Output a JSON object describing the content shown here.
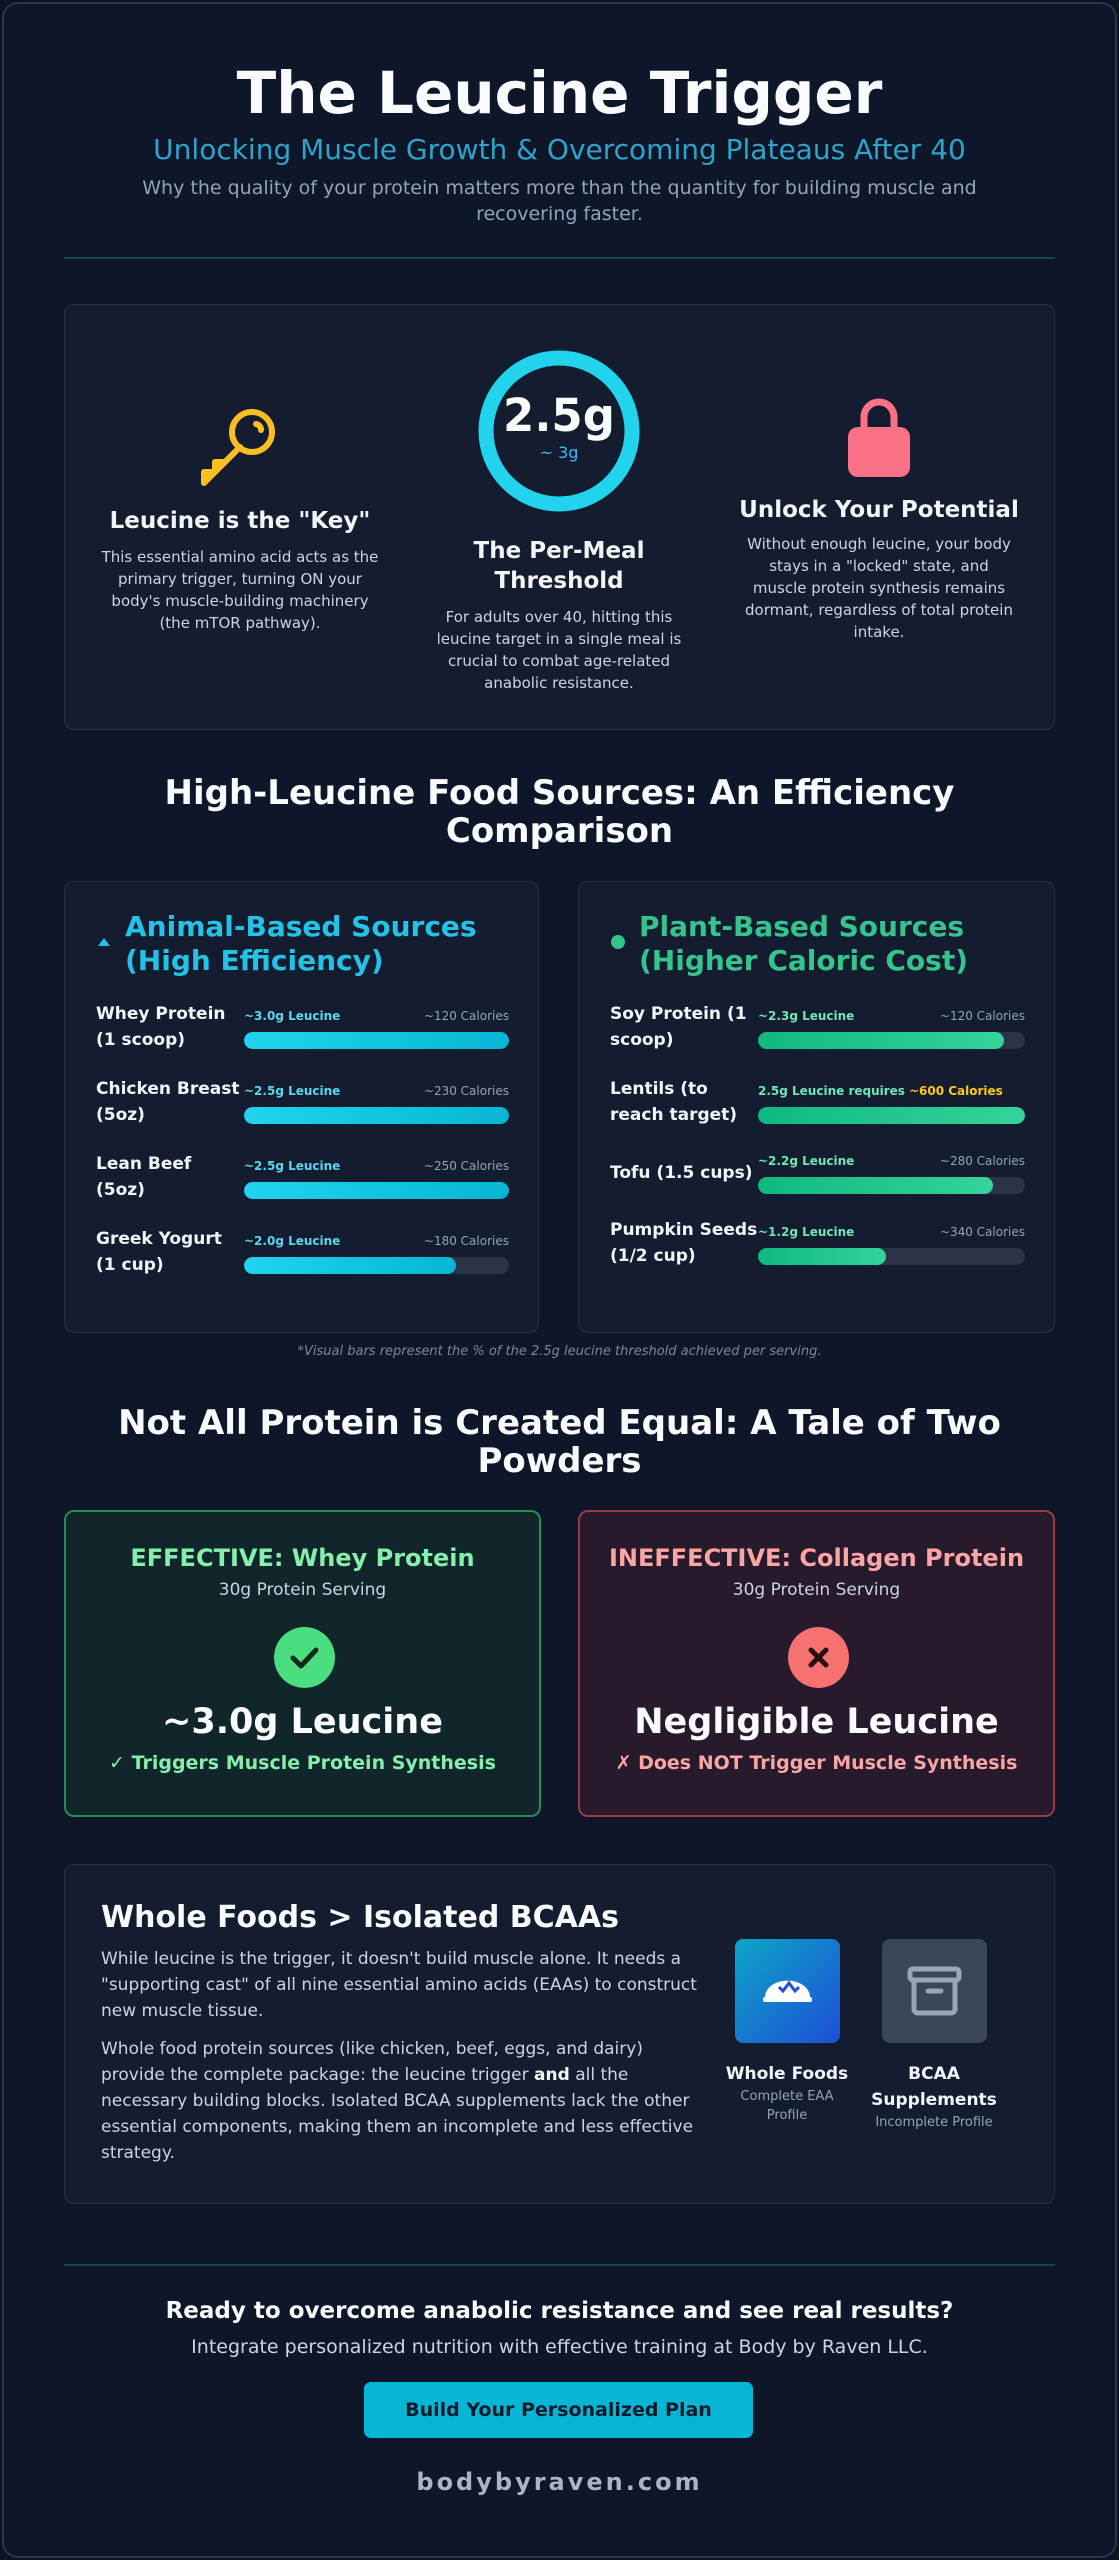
{
  "header": {
    "title": "The Leucine Trigger",
    "subtitle": "Unlocking Muscle Growth & Overcoming Plateaus After 40",
    "description": "Why the quality of your protein matters more than the quantity for building muscle and recovering faster."
  },
  "pillars": [
    {
      "heading": "Leucine is the \"Key\"",
      "text": "This essential amino acid acts as the primary trigger, turning ON your body's muscle-building machinery (the mTOR pathway)."
    },
    {
      "value": "2.5g",
      "sub": "~ 3g",
      "heading": "The Per-Meal Threshold",
      "text": "For adults over 40, hitting this leucine target in a single meal is crucial to combat age-related anabolic resistance."
    },
    {
      "heading": "Unlock Your Potential",
      "text": "Without enough leucine, your body stays in a \"locked\" state, and muscle protein synthesis remains dormant, regardless of total protein intake."
    }
  ],
  "food_section": {
    "title": "High-Leucine Food Sources: An Efficiency Comparison",
    "animal": {
      "title": "Animal-Based Sources (High Efficiency)",
      "items": [
        {
          "name": "Whey Protein (1 scoop)",
          "leucine": "~3.0g Leucine",
          "calories": "~120 Calories",
          "percent": 100
        },
        {
          "name": "Chicken Breast (5oz)",
          "leucine": "~2.5g Leucine",
          "calories": "~230 Calories",
          "percent": 100
        },
        {
          "name": "Lean Beef (5oz)",
          "leucine": "~2.5g Leucine",
          "calories": "~250 Calories",
          "percent": 100
        },
        {
          "name": "Greek Yogurt (1 cup)",
          "leucine": "~2.0g Leucine",
          "calories": "~180 Calories",
          "percent": 80
        }
      ]
    },
    "plant": {
      "title": "Plant-Based Sources (Higher Caloric Cost)",
      "items": [
        {
          "name": "Soy Protein (1 scoop)",
          "leucine": "~2.3g Leucine",
          "calories": "~120 Calories",
          "percent": 92
        },
        {
          "name": "Lentils (to reach target)",
          "leucine": "2.5g Leucine requires",
          "calories": "~600 Calories",
          "calories_color": "#facc15",
          "percent": 100
        },
        {
          "name": "Tofu (1.5 cups)",
          "leucine": "~2.2g Leucine",
          "calories": "~280 Calories",
          "percent": 88
        },
        {
          "name": "Pumpkin Seeds (1/2 cup)",
          "leucine": "~1.2g Leucine",
          "calories": "~340 Calories",
          "percent": 48
        }
      ]
    },
    "footnote": "*Visual bars represent the % of the 2.5g leucine threshold achieved per serving."
  },
  "powders": {
    "title": "Not All Protein is Created Equal: A Tale of Two Powders",
    "cards": [
      {
        "title": "EFFECTIVE: Whey Protein",
        "serving": "30g Protein Serving",
        "amount": "~3.0g Leucine",
        "result": "✓ Triggers Muscle Protein Synthesis"
      },
      {
        "title": "INEFFECTIVE: Collagen Protein",
        "serving": "30g Protein Serving",
        "amount": "Negligible Leucine",
        "result": "✗ Does NOT Trigger Muscle Synthesis"
      }
    ]
  },
  "bcaa": {
    "title": "Whole Foods > Isolated BCAAs",
    "paragraph1": "While leucine is the trigger, it doesn't build muscle alone. It needs a \"supporting cast\" of all nine essential amino acids (EAAs) to construct new muscle tissue.",
    "paragraph2_start": "Whole food protein sources (like chicken, beef, eggs, and dairy) provide the complete package: the leucine trigger ",
    "paragraph2_bold": "and",
    "paragraph2_end": " all the necessary building blocks. Isolated BCAA supplements lack the other essential components, making them an incomplete and less effective strategy.",
    "icons": [
      {
        "label": "Whole Foods",
        "sub": "Complete EAA Profile"
      },
      {
        "label": "BCAA Supplements",
        "sub": "Incomplete Profile"
      }
    ]
  },
  "cta": {
    "heading": "Ready to overcome anabolic resistance and see real results?",
    "text": "Integrate personalized nutrition with effective training at Body by Raven LLC.",
    "button": "Build Your Personalized Plan",
    "site": "bodybyraven.com"
  }
}
